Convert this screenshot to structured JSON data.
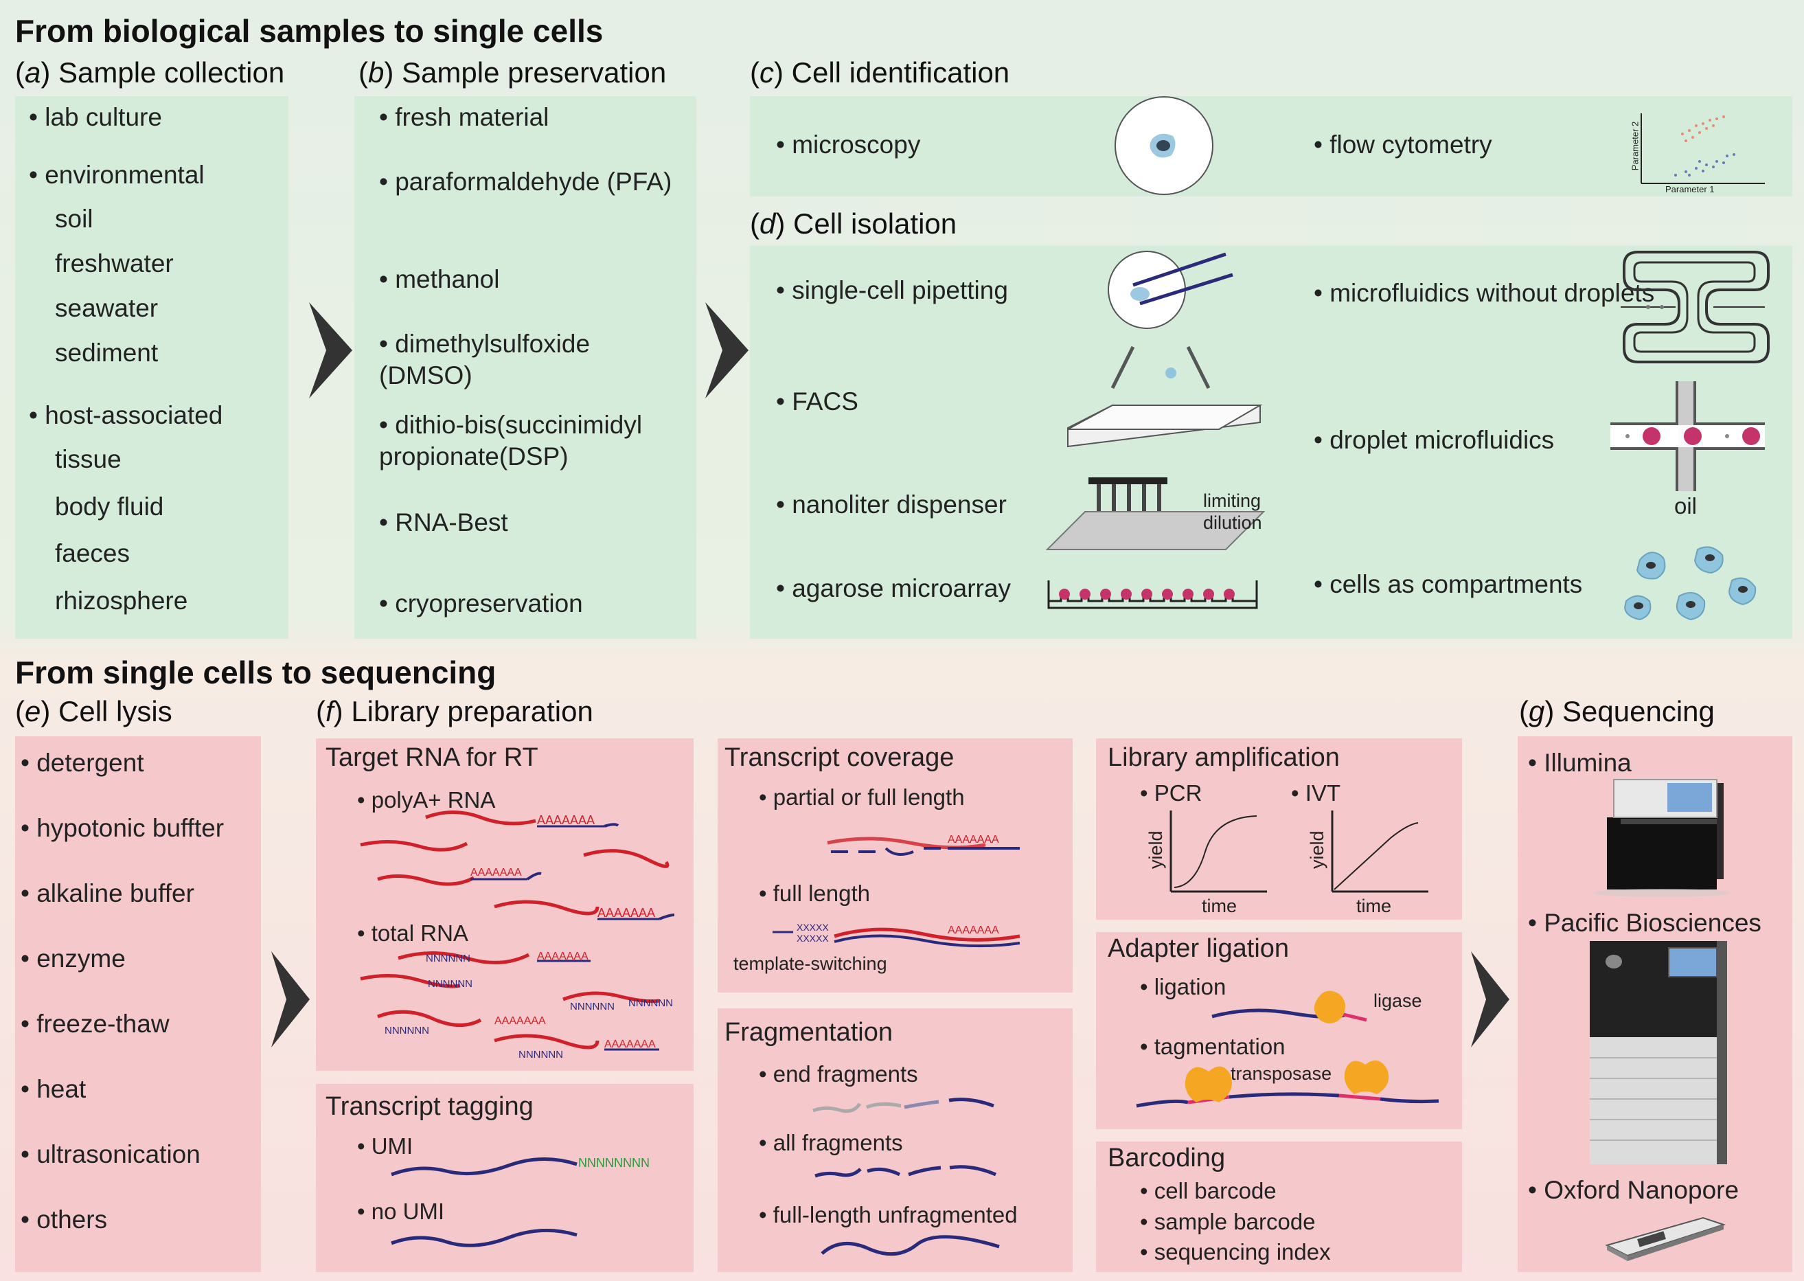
{
  "top": {
    "title": "From biological samples to single cells",
    "a": {
      "letter": "a",
      "title": "Sample collection",
      "items": [
        "• lab culture",
        "• environmental",
        "soil",
        "freshwater",
        "seawater",
        "sediment",
        "• host-associated",
        "tissue",
        "body fluid",
        "faeces",
        "rhizosphere"
      ]
    },
    "b": {
      "letter": "b",
      "title": "Sample preservation",
      "items": [
        "• fresh material",
        "• paraformaldehyde (PFA)",
        "• methanol",
        "• dimethylsulfoxide (DMSO)",
        "• dithio-bis(succinimidyl propionate(DSP)",
        "• RNA-Best",
        "• cryopreservation"
      ]
    },
    "c": {
      "letter": "c",
      "title": "Cell identification",
      "items": [
        "• microscopy",
        "• flow cytometry"
      ],
      "axis_x": "Parameter 1",
      "axis_y": "Parameter 2"
    },
    "d": {
      "letter": "d",
      "title": "Cell isolation",
      "items": [
        "• single-cell pipetting",
        "• FACS",
        "• nanoliter dispenser",
        "• agarose microarray",
        "• microfluidics without droplets",
        "• droplet microfluidics",
        "• cells as compartments"
      ],
      "limiting": "limiting",
      "dilution": "dilution",
      "oil": "oil"
    }
  },
  "bottom": {
    "title": "From single cells to sequencing",
    "e": {
      "letter": "e",
      "title": "Cell lysis",
      "items": [
        "• detergent",
        "• hypotonic buffter",
        "• alkaline buffer",
        "• enzyme",
        "• freeze-thaw",
        "• heat",
        "• ultrasonication",
        "• others"
      ]
    },
    "f": {
      "letter": "f",
      "title": "Library preparation",
      "target": {
        "title": "Target RNA for RT",
        "polya": "• polyA+ RNA",
        "total": "• total RNA"
      },
      "tagging": {
        "title": "Transcript tagging",
        "umi": "• UMI",
        "noumi": "• no UMI"
      },
      "coverage": {
        "title": "Transcript coverage",
        "partial": "• partial or full length",
        "full": "• full length",
        "ts": "template-switching"
      },
      "frag": {
        "title": "Fragmentation",
        "end": "• end fragments",
        "all": "• all fragments",
        "fl": "• full-length unfragmented"
      },
      "amp": {
        "title": "Library amplification",
        "pcr": "• PCR",
        "ivt": "• IVT",
        "yield": "yield",
        "time": "time"
      },
      "adapter": {
        "title": "Adapter ligation",
        "ligation": "• ligation",
        "ligase": "ligase",
        "tag": "• tagmentation",
        "transposase": "transposase"
      },
      "barcoding": {
        "title": "Barcoding",
        "items": [
          "• cell barcode",
          "• sample barcode",
          "• sequencing index"
        ]
      }
    },
    "g": {
      "letter": "g",
      "title": "Sequencing",
      "items": [
        "• Illumina",
        "• Pacific Biosciences",
        "• Oxford Nanopore"
      ]
    }
  },
  "marks": {
    "polya": "AAAAAAA",
    "nn": "NNNNNN",
    "umi": "NNNNNNNN",
    "xx": "XXXXX"
  }
}
